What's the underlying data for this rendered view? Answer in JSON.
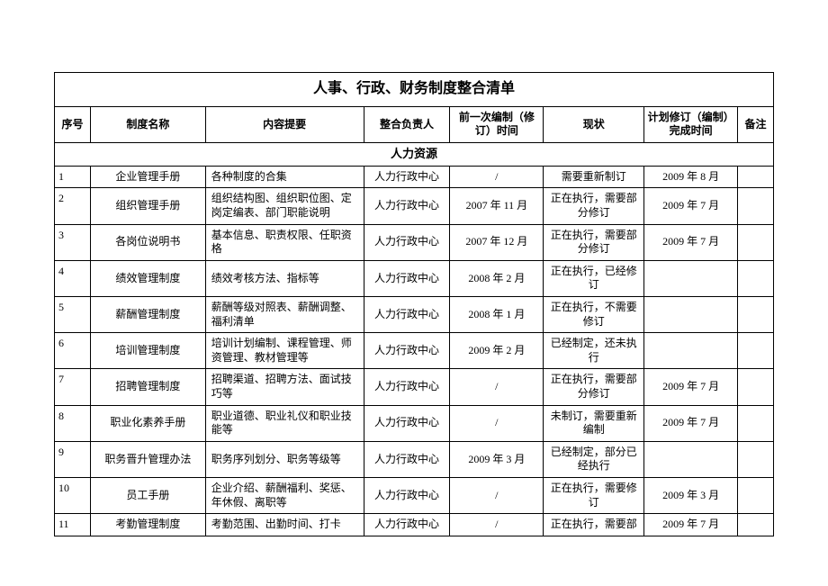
{
  "title": "人事、行政、财务制度整合清单",
  "columns": {
    "seq": "序号",
    "name": "制度名称",
    "summary": "内容提要",
    "owner": "整合负责人",
    "prev": "前一次编制（修订）时间",
    "status": "现状",
    "plan": "计划修订（编制）完成时间",
    "note": "备注"
  },
  "section": "人力资源",
  "rows": [
    {
      "seq": "1",
      "name": "企业管理手册",
      "summary": "各种制度的合集",
      "owner": "人力行政中心",
      "prev": "/",
      "status": "需要重新制订",
      "plan": "2009 年 8 月",
      "note": ""
    },
    {
      "seq": "2",
      "name": "组织管理手册",
      "summary": "组织结构图、组织职位图、定岗定编表、部门职能说明",
      "owner": "人力行政中心",
      "prev": "2007 年 11 月",
      "status": "正在执行，需要部分修订",
      "plan": "2009 年 7 月",
      "note": ""
    },
    {
      "seq": "3",
      "name": "各岗位说明书",
      "summary": "基本信息、职责权限、任职资格",
      "owner": "人力行政中心",
      "prev": "2007 年 12 月",
      "status": "正在执行，需要部分修订",
      "plan": "2009 年 7 月",
      "note": ""
    },
    {
      "seq": "4",
      "name": "绩效管理制度",
      "summary": "绩效考核方法、指标等",
      "owner": "人力行政中心",
      "prev": "2008 年 2 月",
      "status": "正在执行，已经修订",
      "plan": "",
      "note": ""
    },
    {
      "seq": "5",
      "name": "薪酬管理制度",
      "summary": "薪酬等级对照表、薪酬调整、福利清单",
      "owner": "人力行政中心",
      "prev": "2008 年 1 月",
      "status": "正在执行，不需要修订",
      "plan": "",
      "note": ""
    },
    {
      "seq": "6",
      "name": "培训管理制度",
      "summary": "培训计划编制、课程管理、师资管理、教材管理等",
      "owner": "人力行政中心",
      "prev": "2009 年 2 月",
      "status": "已经制定，还未执行",
      "plan": "",
      "note": ""
    },
    {
      "seq": "7",
      "name": "招聘管理制度",
      "summary": "招聘渠道、招聘方法、面试技巧等",
      "owner": "人力行政中心",
      "prev": "/",
      "status": "正在执行，需要部分修订",
      "plan": "2009 年 7 月",
      "note": ""
    },
    {
      "seq": "8",
      "name": "职业化素养手册",
      "summary": "职业道德、职业礼仪和职业技能等",
      "owner": "人力行政中心",
      "prev": "/",
      "status": "未制订，需要重新编制",
      "plan": "2009 年 7 月",
      "note": ""
    },
    {
      "seq": "9",
      "name": "职务晋升管理办法",
      "summary": "职务序列划分、职务等级等",
      "owner": "人力行政中心",
      "prev": "2009 年 3 月",
      "status": "已经制定，部分已经执行",
      "plan": "",
      "note": ""
    },
    {
      "seq": "10",
      "name": "员工手册",
      "summary": "企业介绍、薪酬福利、奖惩、年休假、离职等",
      "owner": "人力行政中心",
      "prev": "/",
      "status": "正在执行，需要修订",
      "plan": "2009 年 3 月",
      "note": ""
    },
    {
      "seq": "11",
      "name": "考勤管理制度",
      "summary": "考勤范围、出勤时间、打卡",
      "owner": "人力行政中心",
      "prev": "/",
      "status": "正在执行，需要部",
      "plan": "2009 年 7 月",
      "note": ""
    }
  ]
}
